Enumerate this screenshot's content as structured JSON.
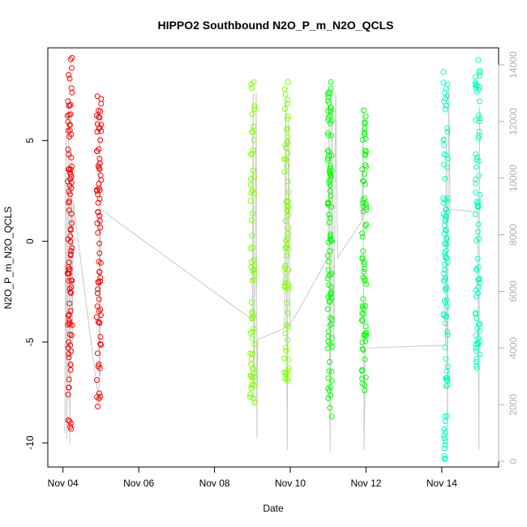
{
  "chart_data": {
    "type": "scatter",
    "title": "HIPPO2 Southbound N2O_P_m_N2O_QCLS",
    "xlabel": "Date",
    "ylabel": "N2O_P_m_N2O_QCLS",
    "x_ticks": [
      "Nov 04",
      "Nov 06",
      "Nov 08",
      "Nov 10",
      "Nov 12",
      "Nov 14"
    ],
    "x_tick_days": [
      4,
      6,
      8,
      10,
      12,
      14
    ],
    "xlim": [
      3.6,
      15.5
    ],
    "ylim": [
      -11.2,
      9.6
    ],
    "y_ticks": [
      -10,
      -5,
      0,
      5
    ],
    "y2lim": [
      -200,
      14600
    ],
    "y2_ticks": [
      0,
      2000,
      4000,
      6000,
      8000,
      10000,
      12000,
      14000
    ],
    "y2_label": "",
    "grid": false,
    "legend": "none",
    "marker": "open circle",
    "series_colors": [
      "#ff0000",
      "#80ff00",
      "#00ff00",
      "#00ffbf"
    ],
    "altitude_line_color": "#c8c8c8",
    "flights": [
      {
        "x": 4.18,
        "color": "#ff0000",
        "y_range": [
          -9.3,
          9.1
        ],
        "n": 95
      },
      {
        "x": 4.95,
        "color": "#ff0000",
        "y_range": [
          -8.2,
          7.2
        ],
        "n": 75
      },
      {
        "x": 9.0,
        "color": "#80ff00",
        "y_range": [
          -8.0,
          7.9
        ],
        "n": 65
      },
      {
        "x": 9.9,
        "color": "#80ff00",
        "y_range": [
          -6.9,
          7.9
        ],
        "n": 70
      },
      {
        "x": 11.05,
        "color": "#00ff00",
        "y_range": [
          -8.7,
          7.9
        ],
        "n": 95
      },
      {
        "x": 11.95,
        "color": "#00ff00",
        "y_range": [
          -7.4,
          6.5
        ],
        "n": 70
      },
      {
        "x": 14.1,
        "color": "#00ffbf",
        "y_range": [
          -10.8,
          8.4
        ],
        "n": 95
      },
      {
        "x": 14.95,
        "color": "#00ffbf",
        "y_range": [
          -6.3,
          9.0
        ],
        "n": 75
      }
    ],
    "altitude_track": [
      {
        "x": 4.05,
        "alt": 1000
      },
      {
        "x": 4.08,
        "alt": 11500
      },
      {
        "x": 4.1,
        "alt": 800
      },
      {
        "x": 4.15,
        "alt": 12800
      },
      {
        "x": 4.18,
        "alt": 600
      },
      {
        "x": 4.22,
        "alt": 11000
      },
      {
        "x": 4.25,
        "alt": 3700
      },
      {
        "x": 4.27,
        "alt": 9200
      },
      {
        "x": 4.95,
        "alt": 2000
      },
      {
        "x": 4.97,
        "alt": 11800
      },
      {
        "x": 4.98,
        "alt": 3000
      },
      {
        "x": 4.99,
        "alt": 8900
      },
      {
        "x": 9.0,
        "alt": 5000
      },
      {
        "x": 9.02,
        "alt": 13000
      },
      {
        "x": 9.04,
        "alt": 2000
      },
      {
        "x": 9.06,
        "alt": 4400
      },
      {
        "x": 9.1,
        "alt": 13000
      },
      {
        "x": 9.12,
        "alt": 800
      },
      {
        "x": 9.14,
        "alt": 4300
      },
      {
        "x": 9.85,
        "alt": 4700
      },
      {
        "x": 9.88,
        "alt": 12800
      },
      {
        "x": 9.92,
        "alt": 400
      },
      {
        "x": 9.95,
        "alt": 12000
      },
      {
        "x": 9.99,
        "alt": 4800
      },
      {
        "x": 11.0,
        "alt": 7200
      },
      {
        "x": 11.03,
        "alt": 12000
      },
      {
        "x": 11.05,
        "alt": 300
      },
      {
        "x": 11.1,
        "alt": 12400
      },
      {
        "x": 11.15,
        "alt": 3900
      },
      {
        "x": 11.2,
        "alt": 13000
      },
      {
        "x": 11.25,
        "alt": 7200
      },
      {
        "x": 11.9,
        "alt": 8500
      },
      {
        "x": 11.92,
        "alt": 12500
      },
      {
        "x": 11.95,
        "alt": 400
      },
      {
        "x": 11.98,
        "alt": 4000
      },
      {
        "x": 14.1,
        "alt": 4100
      },
      {
        "x": 14.12,
        "alt": 11200
      },
      {
        "x": 14.15,
        "alt": 400
      },
      {
        "x": 14.18,
        "alt": 13200
      },
      {
        "x": 14.22,
        "alt": 8900
      },
      {
        "x": 14.95,
        "alt": 8800
      },
      {
        "x": 14.98,
        "alt": 400
      },
      {
        "x": 15.0,
        "alt": 12500
      }
    ]
  }
}
